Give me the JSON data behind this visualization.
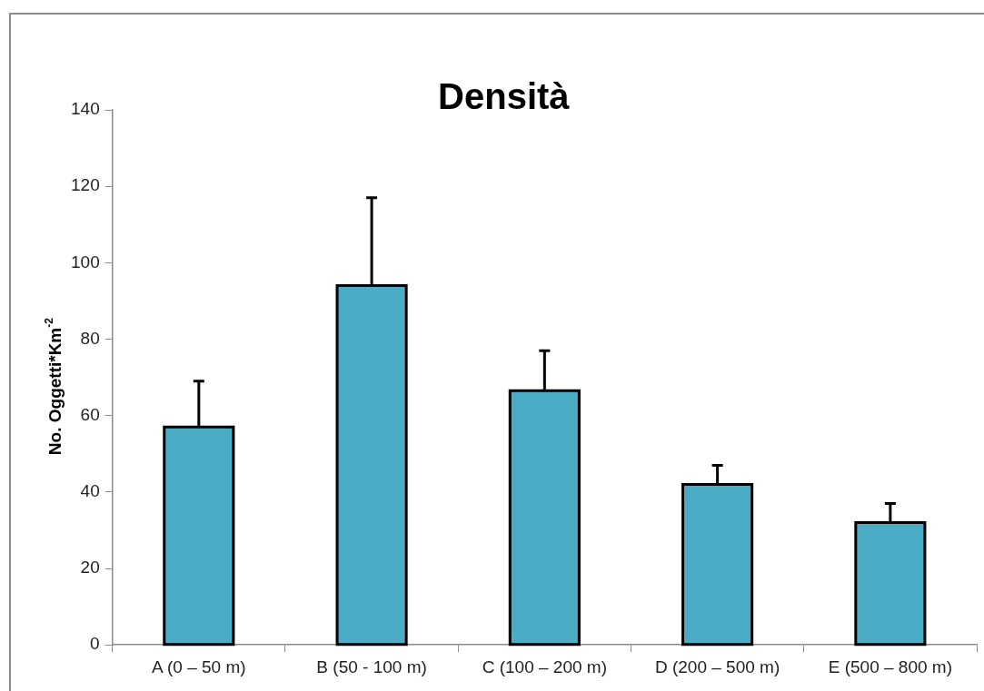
{
  "chart_data": {
    "type": "bar",
    "title": "Densità",
    "ylabel": "No. Oggetti*Km$^{-2}$",
    "categories": [
      "A (0 – 50 m)",
      "B (50 - 100 m)",
      "C (100 – 200 m)",
      "D (200 – 500 m)",
      "E (500 – 800 m)"
    ],
    "values": [
      57,
      94,
      66.5,
      42,
      32
    ],
    "errors": [
      [
        57,
        69
      ],
      [
        94,
        117
      ],
      [
        66.5,
        77
      ],
      [
        42,
        47
      ],
      [
        32,
        37
      ]
    ],
    "color": "#4bacc6",
    "ylim": [
      0,
      140
    ],
    "yticks": [
      0,
      20,
      40,
      60,
      80,
      100,
      120,
      140
    ],
    "legend": false
  }
}
